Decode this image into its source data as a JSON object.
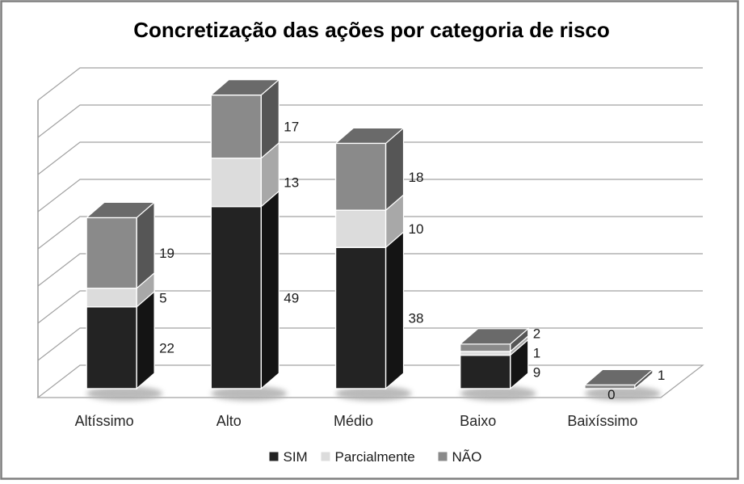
{
  "window": {
    "background": "#ffffff",
    "border_color": "#7f7f7f"
  },
  "chart_data": {
    "type": "bar",
    "subtype": "stacked-3d",
    "title": "Concretização das ações por categoria de risco",
    "categories": [
      "Altíssimo",
      "Alto",
      "Médio",
      "Baixo",
      "Baixíssimo"
    ],
    "series": [
      {
        "name": "SIM",
        "color": "#232323",
        "side_color": "#141414",
        "top_color": "#3d3d3d",
        "values": [
          22,
          49,
          38,
          9,
          0
        ]
      },
      {
        "name": "Parcialmente",
        "color": "#dcdcdc",
        "side_color": "#a8a8a8",
        "top_color": "#c9c9c9",
        "values": [
          5,
          13,
          10,
          1,
          0
        ]
      },
      {
        "name": "NÃO",
        "color": "#8a8a8a",
        "side_color": "#565656",
        "top_color": "#6a6a6a",
        "values": [
          19,
          17,
          18,
          2,
          1
        ]
      }
    ],
    "data_labels": [
      [
        "22",
        "5",
        "19"
      ],
      [
        "49",
        "13",
        "17"
      ],
      [
        "38",
        "10",
        "18"
      ],
      [
        "9",
        "1",
        "2"
      ],
      [
        "0",
        null,
        "1"
      ]
    ],
    "xlabel": "",
    "ylabel": "",
    "ylim": [
      0,
      80
    ],
    "gridline_step": 10,
    "grid": "on",
    "legend_position": "bottom",
    "legend": [
      "SIM",
      "Parcialmente",
      "NÃO"
    ],
    "colors": {
      "grid": "#a2a2a2",
      "axis": "#9a9a9a",
      "text": "#262626",
      "label_text": "#1a1a1a",
      "title": "#000000",
      "edge": "#ffffff",
      "shadow": "#aeaeae"
    }
  }
}
